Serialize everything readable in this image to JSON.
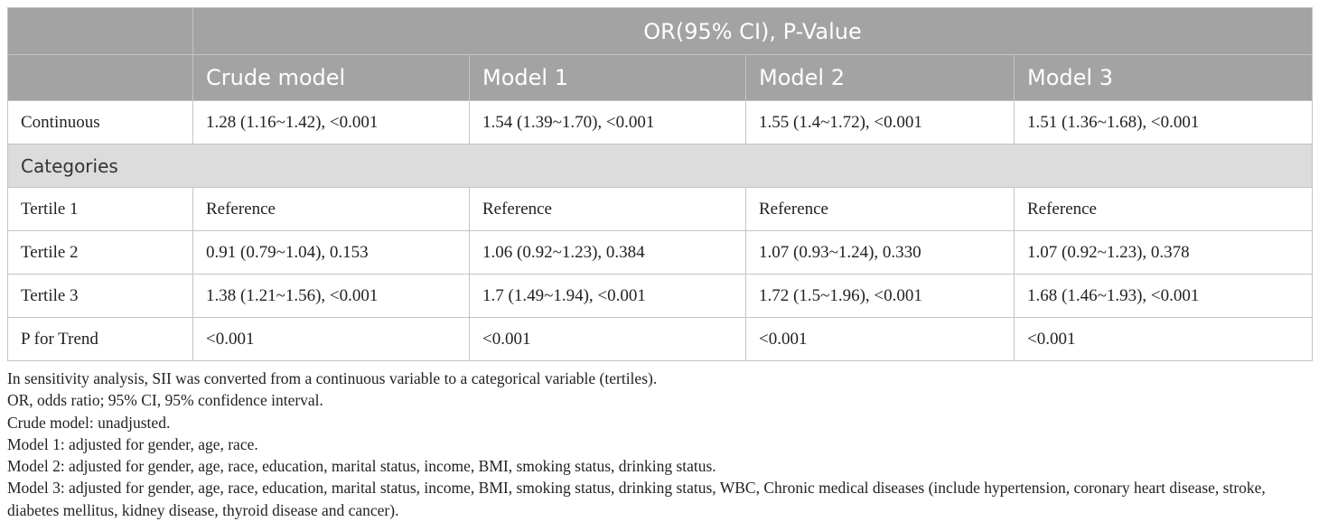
{
  "table": {
    "header_span": "OR(95% CI), P-Value",
    "columns": [
      "Crude model",
      "Model 1",
      "Model 2",
      "Model 3"
    ],
    "continuous": {
      "label": "Continuous",
      "values": [
        "1.28 (1.16~1.42), <0.001",
        "1.54 (1.39~1.70), <0.001",
        "1.55 (1.4~1.72), <0.001",
        "1.51 (1.36~1.68), <0.001"
      ]
    },
    "section_label": "Categories",
    "rows": [
      {
        "label": "Tertile 1",
        "values": [
          "Reference",
          "Reference",
          "Reference",
          "Reference"
        ]
      },
      {
        "label": "Tertile 2",
        "values": [
          "0.91 (0.79~1.04), 0.153",
          "1.06 (0.92~1.23), 0.384",
          "1.07 (0.93~1.24), 0.330",
          "1.07 (0.92~1.23), 0.378"
        ]
      },
      {
        "label": "Tertile 3",
        "values": [
          "1.38 (1.21~1.56), <0.001",
          "1.7 (1.49~1.94), <0.001",
          "1.72 (1.5~1.96), <0.001",
          "1.68 (1.46~1.93), <0.001"
        ]
      },
      {
        "label": "P for Trend",
        "values": [
          "<0.001",
          "<0.001",
          "<0.001",
          "<0.001"
        ]
      }
    ]
  },
  "footnotes": [
    "In sensitivity analysis, SII was converted from a continuous variable to a categorical variable (tertiles).",
    "OR, odds ratio; 95% CI, 95% confidence interval.",
    "Crude model: unadjusted.",
    "Model 1: adjusted for gender, age, race.",
    "Model 2: adjusted for gender, age, race, education, marital status, income, BMI, smoking status, drinking status.",
    "Model 3: adjusted for gender, age, race, education, marital status, income, BMI, smoking status, drinking status, WBC, Chronic medical diseases (include hypertension, coronary heart disease, stroke, diabetes mellitus, kidney disease, thyroid disease and cancer)."
  ]
}
